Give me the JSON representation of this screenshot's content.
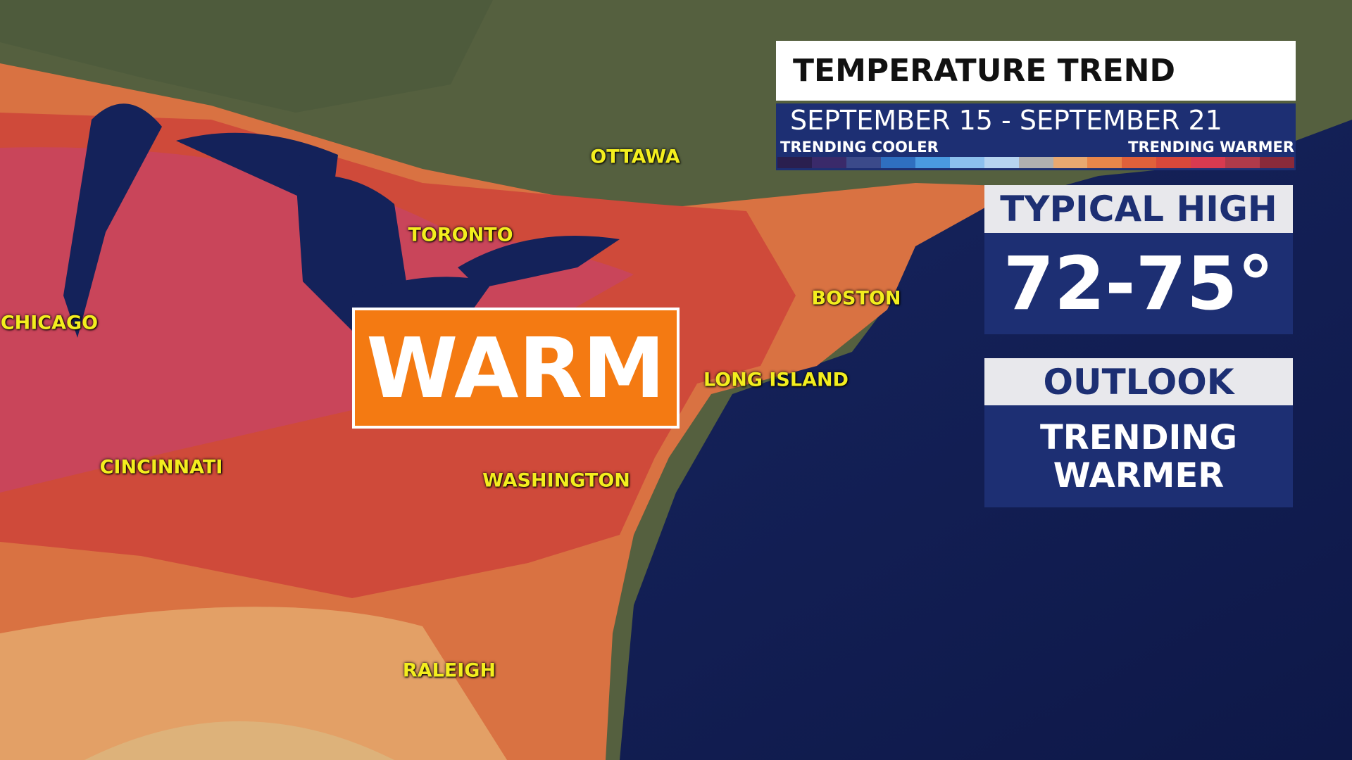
{
  "panel": {
    "title": "TEMPERATURE TREND",
    "dates": "SEPTEMBER 15 - SEPTEMBER 21",
    "scale": {
      "cooler": "TRENDING COOLER",
      "warmer": "TRENDING WARMER"
    },
    "typical_high": {
      "label": "TYPICAL HIGH",
      "value": "72-75°"
    },
    "outlook": {
      "label": "OUTLOOK",
      "value": "TRENDING WARMER"
    }
  },
  "map": {
    "badge": "WARM",
    "cities": [
      {
        "name": "OTTAWA"
      },
      {
        "name": "TORONTO"
      },
      {
        "name": "CHICAGO"
      },
      {
        "name": "BOSTON"
      },
      {
        "name": "LONG ISLAND"
      },
      {
        "name": "CINCINNATI"
      },
      {
        "name": "WASHINGTON"
      },
      {
        "name": "RALEIGH"
      }
    ]
  }
}
